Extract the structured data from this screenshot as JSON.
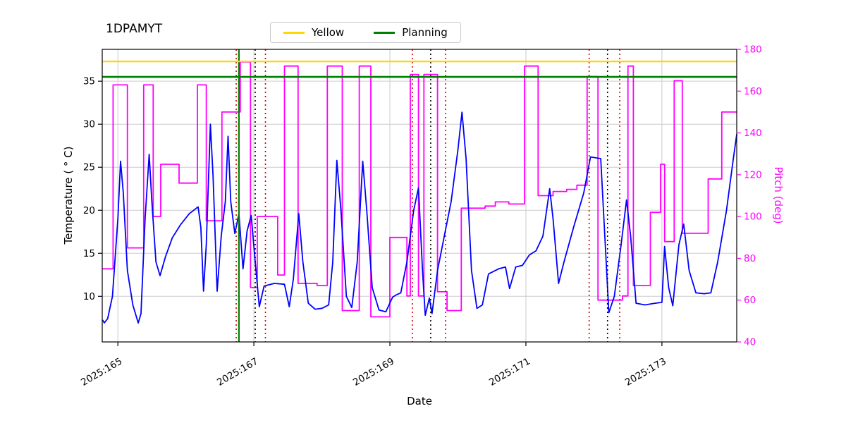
{
  "chart_data": {
    "type": "line",
    "title": "1DPAMYT",
    "xlabel": "Date",
    "ylabel_left": "Temperature ( ° C)",
    "ylabel_right": "Pitch (deg)",
    "xlim": [
      164.77,
      174.1
    ],
    "ylim_left": [
      4.7,
      38.7
    ],
    "ylim_right": [
      40,
      180
    ],
    "x_tick_values": [
      165,
      167,
      169,
      171,
      173
    ],
    "x_tick_labels": [
      "2025:165",
      "2025:167",
      "2025:169",
      "2025:171",
      "2025:173"
    ],
    "y_ticks_left": [
      10,
      15,
      20,
      25,
      30,
      35
    ],
    "y_ticks_right": [
      40,
      60,
      80,
      100,
      120,
      140,
      160,
      180
    ],
    "legend": [
      {
        "label": "Yellow",
        "color": "#ffd700"
      },
      {
        "label": "Planning",
        "color": "#008000"
      }
    ],
    "hlines": [
      {
        "y": 37.3,
        "color": "#ffd700",
        "width": 2.2,
        "style": "solid"
      },
      {
        "y": 35.5,
        "color": "#008000",
        "width": 2.6,
        "style": "solid"
      }
    ],
    "vlines": [
      {
        "x": 166.74,
        "color": "#cc0000",
        "width": 1.6,
        "style": "dotted"
      },
      {
        "x": 166.78,
        "color": "#008000",
        "width": 2.2,
        "style": "solid"
      },
      {
        "x": 167.02,
        "color": "#000000",
        "width": 1.6,
        "style": "dotted"
      },
      {
        "x": 167.17,
        "color": "#cc0000",
        "width": 1.6,
        "style": "dotted"
      },
      {
        "x": 169.33,
        "color": "#cc0000",
        "width": 1.6,
        "style": "dotted"
      },
      {
        "x": 169.6,
        "color": "#000000",
        "width": 1.6,
        "style": "dotted"
      },
      {
        "x": 169.82,
        "color": "#cc0000",
        "width": 1.6,
        "style": "dotted"
      },
      {
        "x": 171.93,
        "color": "#cc0000",
        "width": 1.6,
        "style": "dotted"
      },
      {
        "x": 172.2,
        "color": "#000000",
        "width": 1.6,
        "style": "dotted"
      },
      {
        "x": 172.38,
        "color": "#cc0000",
        "width": 1.6,
        "style": "dotted"
      }
    ],
    "series": [
      {
        "name": "Pitch",
        "axis": "right",
        "color": "#ff00ff",
        "width": 1.8,
        "draw": "step",
        "points": [
          [
            164.78,
            75
          ],
          [
            164.93,
            163
          ],
          [
            165.14,
            85
          ],
          [
            165.38,
            163
          ],
          [
            165.52,
            100
          ],
          [
            165.63,
            125
          ],
          [
            165.9,
            116
          ],
          [
            166.17,
            163
          ],
          [
            166.3,
            98
          ],
          [
            166.53,
            150
          ],
          [
            166.8,
            174
          ],
          [
            166.95,
            66
          ],
          [
            167.05,
            100
          ],
          [
            167.35,
            72
          ],
          [
            167.45,
            172
          ],
          [
            167.65,
            68
          ],
          [
            167.93,
            67
          ],
          [
            168.08,
            172
          ],
          [
            168.3,
            55
          ],
          [
            168.55,
            172
          ],
          [
            168.72,
            52
          ],
          [
            169.0,
            90
          ],
          [
            169.25,
            62
          ],
          [
            169.3,
            168
          ],
          [
            169.42,
            62
          ],
          [
            169.5,
            168
          ],
          [
            169.7,
            64
          ],
          [
            169.84,
            55
          ],
          [
            170.05,
            104
          ],
          [
            170.4,
            105
          ],
          [
            170.55,
            107
          ],
          [
            170.75,
            106
          ],
          [
            170.98,
            172
          ],
          [
            171.18,
            110
          ],
          [
            171.4,
            112
          ],
          [
            171.6,
            113
          ],
          [
            171.75,
            115
          ],
          [
            171.9,
            167
          ],
          [
            172.06,
            60
          ],
          [
            172.42,
            62
          ],
          [
            172.5,
            172
          ],
          [
            172.58,
            67
          ],
          [
            172.83,
            102
          ],
          [
            172.98,
            125
          ],
          [
            173.04,
            88
          ],
          [
            173.18,
            165
          ],
          [
            173.3,
            92
          ],
          [
            173.68,
            118
          ],
          [
            173.88,
            150
          ],
          [
            174.1,
            150
          ]
        ]
      },
      {
        "name": "Temperature",
        "axis": "left",
        "color": "#0000ff",
        "width": 1.8,
        "draw": "line",
        "points": [
          [
            164.78,
            7.2
          ],
          [
            164.8,
            6.9
          ],
          [
            164.85,
            7.4
          ],
          [
            164.92,
            10.0
          ],
          [
            165.0,
            19.0
          ],
          [
            165.04,
            25.7
          ],
          [
            165.08,
            22.0
          ],
          [
            165.14,
            13.0
          ],
          [
            165.22,
            9.0
          ],
          [
            165.3,
            6.9
          ],
          [
            165.34,
            8.0
          ],
          [
            165.4,
            19.0
          ],
          [
            165.46,
            26.5
          ],
          [
            165.5,
            21.0
          ],
          [
            165.56,
            14.0
          ],
          [
            165.62,
            12.4
          ],
          [
            165.7,
            14.6
          ],
          [
            165.8,
            16.8
          ],
          [
            165.92,
            18.3
          ],
          [
            166.05,
            19.6
          ],
          [
            166.18,
            20.4
          ],
          [
            166.22,
            18.0
          ],
          [
            166.26,
            10.6
          ],
          [
            166.3,
            16.0
          ],
          [
            166.36,
            30.0
          ],
          [
            166.4,
            24.0
          ],
          [
            166.46,
            10.6
          ],
          [
            166.52,
            17.0
          ],
          [
            166.58,
            21.0
          ],
          [
            166.62,
            28.6
          ],
          [
            166.66,
            21.0
          ],
          [
            166.72,
            17.3
          ],
          [
            166.78,
            19.6
          ],
          [
            166.84,
            13.2
          ],
          [
            166.9,
            17.6
          ],
          [
            166.96,
            19.4
          ],
          [
            167.02,
            14.0
          ],
          [
            167.08,
            8.8
          ],
          [
            167.15,
            11.2
          ],
          [
            167.3,
            11.5
          ],
          [
            167.45,
            11.4
          ],
          [
            167.52,
            8.8
          ],
          [
            167.58,
            12.0
          ],
          [
            167.66,
            19.6
          ],
          [
            167.72,
            14.0
          ],
          [
            167.8,
            9.2
          ],
          [
            167.9,
            8.5
          ],
          [
            168.0,
            8.6
          ],
          [
            168.1,
            9.0
          ],
          [
            168.16,
            14.0
          ],
          [
            168.22,
            25.8
          ],
          [
            168.28,
            20.0
          ],
          [
            168.36,
            10.0
          ],
          [
            168.44,
            8.7
          ],
          [
            168.52,
            14.0
          ],
          [
            168.6,
            25.7
          ],
          [
            168.66,
            20.0
          ],
          [
            168.74,
            11.0
          ],
          [
            168.84,
            8.4
          ],
          [
            168.94,
            8.2
          ],
          [
            169.04,
            9.9
          ],
          [
            169.1,
            10.2
          ],
          [
            169.16,
            10.4
          ],
          [
            169.25,
            14.0
          ],
          [
            169.35,
            20.0
          ],
          [
            169.42,
            22.6
          ],
          [
            169.48,
            13.0
          ],
          [
            169.52,
            7.8
          ],
          [
            169.58,
            9.8
          ],
          [
            169.62,
            8.0
          ],
          [
            169.7,
            13.0
          ],
          [
            169.8,
            17.0
          ],
          [
            169.9,
            21.0
          ],
          [
            170.0,
            27.0
          ],
          [
            170.06,
            31.4
          ],
          [
            170.12,
            26.0
          ],
          [
            170.2,
            13.0
          ],
          [
            170.28,
            8.6
          ],
          [
            170.36,
            9.0
          ],
          [
            170.45,
            12.6
          ],
          [
            170.6,
            13.2
          ],
          [
            170.7,
            13.4
          ],
          [
            170.76,
            10.9
          ],
          [
            170.85,
            13.4
          ],
          [
            170.95,
            13.6
          ],
          [
            171.05,
            14.8
          ],
          [
            171.15,
            15.3
          ],
          [
            171.25,
            17.0
          ],
          [
            171.35,
            22.5
          ],
          [
            171.4,
            19.0
          ],
          [
            171.48,
            11.5
          ],
          [
            171.56,
            14.0
          ],
          [
            171.7,
            18.0
          ],
          [
            171.85,
            22.0
          ],
          [
            171.95,
            26.2
          ],
          [
            172.1,
            26.0
          ],
          [
            172.16,
            17.0
          ],
          [
            172.22,
            8.1
          ],
          [
            172.3,
            10.0
          ],
          [
            172.4,
            16.0
          ],
          [
            172.48,
            21.2
          ],
          [
            172.54,
            17.0
          ],
          [
            172.62,
            9.2
          ],
          [
            172.75,
            9.0
          ],
          [
            172.9,
            9.2
          ],
          [
            173.0,
            9.3
          ],
          [
            173.04,
            15.8
          ],
          [
            173.1,
            11.0
          ],
          [
            173.16,
            8.9
          ],
          [
            173.25,
            16.0
          ],
          [
            173.32,
            18.4
          ],
          [
            173.4,
            13.0
          ],
          [
            173.5,
            10.4
          ],
          [
            173.62,
            10.3
          ],
          [
            173.72,
            10.4
          ],
          [
            173.82,
            14.0
          ],
          [
            173.95,
            20.0
          ],
          [
            174.05,
            26.0
          ],
          [
            174.1,
            28.8
          ]
        ]
      }
    ],
    "grid_color": "#cccccc",
    "tick_label_color_right": "#ff00ff"
  }
}
